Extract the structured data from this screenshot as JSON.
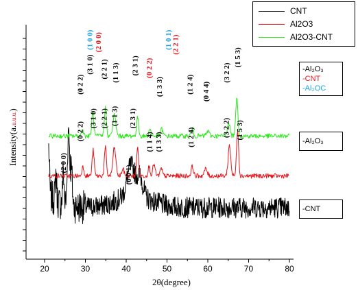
{
  "chart_data": {
    "type": "line",
    "xlabel": "2θ(degree)",
    "ylabel": "Intensity(a.u.)",
    "ylabel_prefix": "Intensity(a.",
    "ylabel_small": "u.u.u.",
    "ylabel_suffix": ")",
    "xlim": [
      20,
      80
    ],
    "xticks": [
      20,
      30,
      40,
      50,
      60,
      70,
      80
    ],
    "xtick_labels": [
      "20",
      "30",
      "40",
      "50",
      "60",
      "70",
      "80"
    ],
    "legend": {
      "placement": "top-right",
      "entries": [
        {
          "label": "CNT",
          "color": "#000000"
        },
        {
          "label": "Al2O3",
          "color": "#e8141b"
        },
        {
          "label": "Al2O3-CNT",
          "color": "#2ce81a"
        }
      ]
    },
    "series": [
      {
        "name": "CNT",
        "color": "#000000",
        "baseline": 0.22,
        "noise": 0.045,
        "peaks": [
          {
            "x": 21.0,
            "h": 0.2,
            "w": 0.25
          },
          {
            "x": 22.8,
            "h": 0.12,
            "w": 0.25
          },
          {
            "x": 24.6,
            "h": 0.14,
            "w": 0.25
          },
          {
            "x": 25.9,
            "h": 0.33,
            "w": 0.4
          },
          {
            "x": 26.6,
            "h": 0.14,
            "w": 0.3
          },
          {
            "x": 41.2,
            "h": 0.13,
            "w": 1.4
          },
          {
            "x": 43.4,
            "h": 0.08,
            "w": 1.0
          }
        ],
        "hump": {
          "x": 42.0,
          "h": 0.05,
          "w": 6.0
        },
        "peak_labels": [
          {
            "x": 25.2,
            "text": "(2 0 0)",
            "color": "#000000",
            "y": 0.41
          },
          {
            "x": 41.2,
            "text": "(0 0 1)",
            "color": "#000000",
            "y": 0.36
          }
        ]
      },
      {
        "name": "Al2O3",
        "color": "#e8141b",
        "baseline": 0.355,
        "noise": 0.01,
        "peaks": [
          {
            "x": 29.4,
            "h": 0.04,
            "w": 0.35
          },
          {
            "x": 31.9,
            "h": 0.11,
            "w": 0.35
          },
          {
            "x": 34.9,
            "h": 0.12,
            "w": 0.35
          },
          {
            "x": 37.1,
            "h": 0.12,
            "w": 0.5
          },
          {
            "x": 39.2,
            "h": 0.03,
            "w": 0.4
          },
          {
            "x": 42.8,
            "h": 0.12,
            "w": 0.35
          },
          {
            "x": 45.6,
            "h": 0.04,
            "w": 0.35
          },
          {
            "x": 46.8,
            "h": 0.05,
            "w": 0.4
          },
          {
            "x": 48.6,
            "h": 0.03,
            "w": 0.4
          },
          {
            "x": 56.2,
            "h": 0.04,
            "w": 0.4
          },
          {
            "x": 59.5,
            "h": 0.03,
            "w": 0.5
          },
          {
            "x": 65.3,
            "h": 0.13,
            "w": 0.45
          },
          {
            "x": 67.3,
            "h": 0.2,
            "w": 0.35
          }
        ],
        "peak_labels": [
          {
            "x": 29.3,
            "text": "(0 2 2)",
            "color": "#000000",
            "y": 0.545
          },
          {
            "x": 32.5,
            "text": "(3 1 0)",
            "color": "#000000",
            "y": 0.6
          },
          {
            "x": 35.2,
            "text": "(2 2 1)",
            "color": "#000000",
            "y": 0.6
          },
          {
            "x": 37.7,
            "text": "(1 1 3)",
            "color": "#000000",
            "y": 0.61
          },
          {
            "x": 42.2,
            "text": "(2 3 1)",
            "color": "#000000",
            "y": 0.6
          },
          {
            "x": 46.3,
            "text": "(1 1 4)",
            "color": "#000000",
            "y": 0.5
          },
          {
            "x": 48.6,
            "text": "(1 3 3)",
            "color": "#000000",
            "y": 0.5
          },
          {
            "x": 56.5,
            "text": "(1 2 4)",
            "color": "#000000",
            "y": 0.52
          },
          {
            "x": 65.1,
            "text": "(3 2 2)",
            "color": "#000000",
            "y": 0.56
          },
          {
            "x": 68.4,
            "text": "(1 5 3)",
            "color": "#000000",
            "y": 0.55
          }
        ]
      },
      {
        "name": "Al2O3-CNT",
        "color": "#2ce81a",
        "baseline": 0.525,
        "noise": 0.01,
        "peaks": [
          {
            "x": 29.3,
            "h": 0.03,
            "w": 0.35
          },
          {
            "x": 31.8,
            "h": 0.1,
            "w": 0.35
          },
          {
            "x": 34.9,
            "h": 0.12,
            "w": 0.35
          },
          {
            "x": 37.1,
            "h": 0.09,
            "w": 0.5
          },
          {
            "x": 42.8,
            "h": 0.08,
            "w": 0.35
          },
          {
            "x": 45.8,
            "h": 0.03,
            "w": 0.35
          },
          {
            "x": 48.7,
            "h": 0.03,
            "w": 0.4
          },
          {
            "x": 56.2,
            "h": 0.03,
            "w": 0.4
          },
          {
            "x": 60.0,
            "h": 0.02,
            "w": 0.5
          },
          {
            "x": 65.1,
            "h": 0.06,
            "w": 0.45
          },
          {
            "x": 67.1,
            "h": 0.16,
            "w": 0.4
          }
        ],
        "peak_labels": [
          {
            "x": 29.3,
            "text": "(0 2 2)",
            "color": "#000000",
            "y": 0.745
          },
          {
            "x": 31.7,
            "text": "(3 1 0)",
            "color": "#000000",
            "y": 0.83
          },
          {
            "x": 31.7,
            "text": "(1 0 0)",
            "color": "#1aa3e8",
            "y": 0.935
          },
          {
            "x": 33.8,
            "text": "(2 0 0)",
            "color": "#e8141b",
            "y": 0.925
          },
          {
            "x": 35.2,
            "text": "(2 2 1)",
            "color": "#000000",
            "y": 0.81
          },
          {
            "x": 38.0,
            "text": "(1 1 3)",
            "color": "#000000",
            "y": 0.795
          },
          {
            "x": 42.8,
            "text": "(2 3 1)",
            "color": "#000000",
            "y": 0.825
          },
          {
            "x": 46.2,
            "text": "(0 2 2)",
            "color": "#e8141b",
            "y": 0.815
          },
          {
            "x": 48.7,
            "text": "(1 3 3)",
            "color": "#000000",
            "y": 0.735
          },
          {
            "x": 50.9,
            "text": "(1 0 1)",
            "color": "#1aa3e8",
            "y": 0.935
          },
          {
            "x": 52.7,
            "text": "(2 2 1)",
            "color": "#e8141b",
            "y": 0.915
          },
          {
            "x": 56.2,
            "text": "(1 2 4)",
            "color": "#000000",
            "y": 0.745
          },
          {
            "x": 60.2,
            "text": "(0 4 4)",
            "color": "#000000",
            "y": 0.715
          },
          {
            "x": 65.2,
            "text": "(3 2 2)",
            "color": "#000000",
            "y": 0.795
          },
          {
            "x": 67.9,
            "text": "(1 5 3)",
            "color": "#000000",
            "y": 0.86
          }
        ]
      }
    ],
    "series_label_boxes": [
      {
        "lines": [
          {
            "text": "-Al₂O₃",
            "class": ""
          },
          {
            "text": "-CNT",
            "class": "lab-red"
          },
          {
            "text": "-Al₂OC",
            "class": "lab-blue"
          }
        ]
      },
      {
        "lines": [
          {
            "text": "-Al₂O₃",
            "class": ""
          }
        ]
      },
      {
        "lines": [
          {
            "text": "-CNT",
            "class": ""
          }
        ]
      }
    ]
  }
}
